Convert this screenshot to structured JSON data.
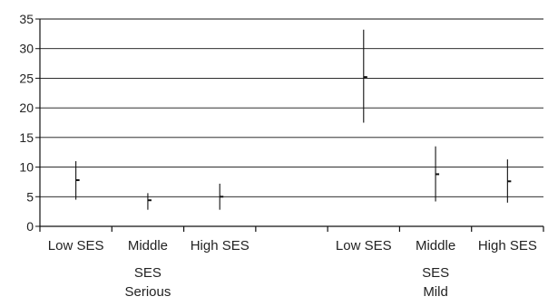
{
  "chart_data": {
    "type": "errorbar",
    "title": "",
    "xlabel": "",
    "ylabel": "",
    "ylim": [
      0,
      35
    ],
    "yticks": [
      0,
      5,
      10,
      15,
      20,
      25,
      30,
      35
    ],
    "grid": true,
    "legend": "none",
    "categories": [
      "Low SES",
      "Middle",
      "High SES",
      "",
      "Low SES",
      "Middle",
      "High SES"
    ],
    "category_sublabels": [
      "",
      "SES",
      "",
      "",
      "",
      "SES",
      ""
    ],
    "groups": [
      {
        "label": "Serious",
        "categories": [
          0,
          1,
          2
        ]
      },
      {
        "label": "Mild",
        "categories": [
          4,
          5,
          6
        ]
      }
    ],
    "points": [
      {
        "category": 0,
        "value": 7.8,
        "low": 4.5,
        "high": 11.0
      },
      {
        "category": 1,
        "value": 4.4,
        "low": 2.8,
        "high": 5.6
      },
      {
        "category": 2,
        "value": 5.0,
        "low": 2.8,
        "high": 7.2
      },
      {
        "category": 4,
        "value": 25.2,
        "low": 17.5,
        "high": 33.2
      },
      {
        "category": 5,
        "value": 8.8,
        "low": 4.2,
        "high": 13.5
      },
      {
        "category": 6,
        "value": 7.6,
        "low": 4.0,
        "high": 11.3
      }
    ],
    "colors": {
      "mark": "#111111",
      "grid": "#111111",
      "axis": "#111111",
      "text": "#222222"
    }
  }
}
